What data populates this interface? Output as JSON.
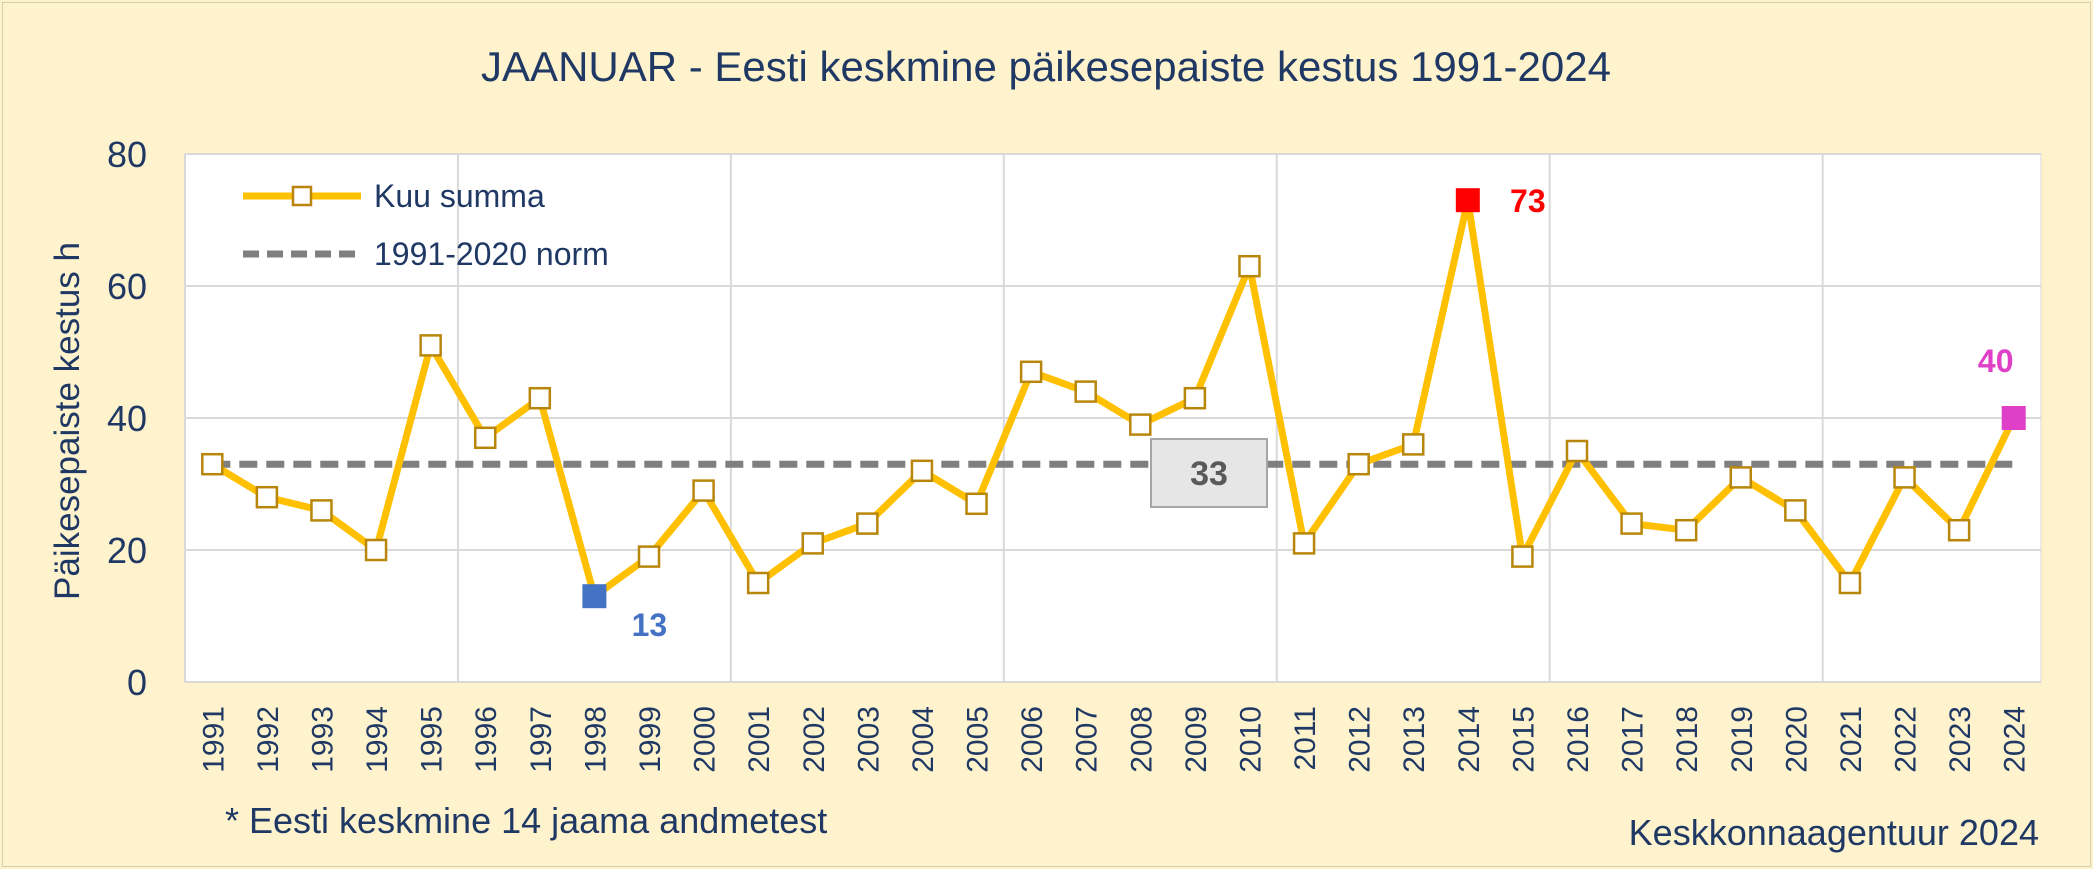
{
  "chart_data": {
    "type": "line",
    "title": "JAANUAR - Eesti keskmine päikesepaiste kestus 1991-2024",
    "xlabel": "",
    "ylabel": "Päikesepaiste kestus h",
    "ylim": [
      0,
      80
    ],
    "yticks": [
      "0",
      "20",
      "40",
      "60",
      "80"
    ],
    "grid": true,
    "legend_position": "top-left",
    "categories": [
      "1991",
      "1992",
      "1993",
      "1994",
      "1995",
      "1996",
      "1997",
      "1998",
      "1999",
      "2000",
      "2001",
      "2002",
      "2003",
      "2004",
      "2005",
      "2006",
      "2007",
      "2008",
      "2009",
      "2010",
      "2011",
      "2012",
      "2013",
      "2014",
      "2015",
      "2016",
      "2017",
      "2018",
      "2019",
      "2020",
      "2021",
      "2022",
      "2023",
      "2024"
    ],
    "series": [
      {
        "name": "Kuu summa",
        "color": "#ffc000",
        "marker_edge": "#b8860b",
        "values": [
          33,
          28,
          26,
          20,
          51,
          37,
          43,
          13,
          19,
          29,
          15,
          21,
          24,
          32,
          27,
          47,
          44,
          39,
          43,
          63,
          21,
          33,
          36,
          73,
          19,
          35,
          24,
          23,
          31,
          26,
          15,
          31,
          23,
          40
        ]
      },
      {
        "name": "1991-2020 norm",
        "color": "#7f7f7f",
        "style": "dashed",
        "value": 33
      }
    ],
    "highlights": [
      {
        "index": 7,
        "label": "13",
        "color": "#4472c4"
      },
      {
        "index": 23,
        "label": "73",
        "color": "#ff0000"
      },
      {
        "index": 33,
        "label": "40",
        "color": "#e040c8"
      }
    ],
    "norm_label": "33",
    "footnote": "* Eesti keskmine 14 jaama andmetest",
    "source": "Keskkonnaagentuur 2024"
  }
}
